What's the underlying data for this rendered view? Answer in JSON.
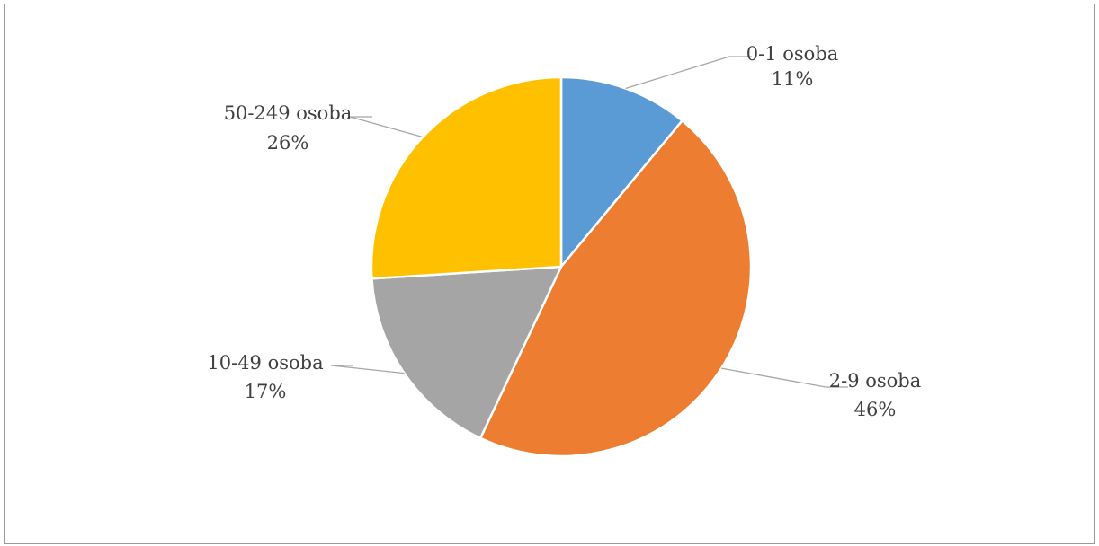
{
  "chart_data": {
    "type": "pie",
    "categories": [
      "0-1 osoba",
      "2-9 osoba",
      "10-49 osoba",
      "50-249 osoba"
    ],
    "values": [
      11,
      46,
      17,
      26
    ],
    "percent_labels": [
      "11%",
      "46%",
      "17%",
      "26%"
    ],
    "colors": [
      "#5b9bd5",
      "#ed7d31",
      "#a5a5a5",
      "#ffc000"
    ],
    "start_angle_deg": 0,
    "direction": "clockwise",
    "legend": "none",
    "data_labels": "outside with leader lines"
  }
}
